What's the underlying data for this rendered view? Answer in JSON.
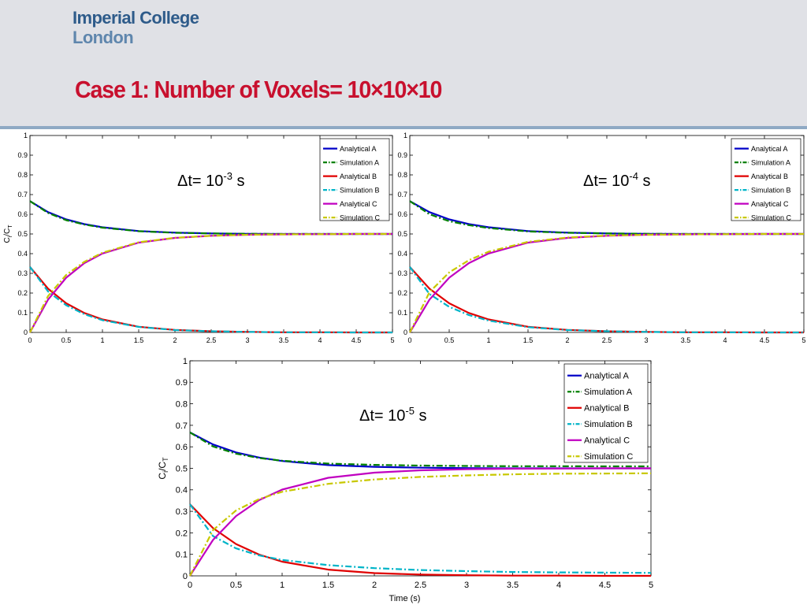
{
  "header": {
    "logo_line1": "Imperial College",
    "logo_line2": "London",
    "title": "Case 1: Number of Voxels= 10×10×10"
  },
  "colors": {
    "title_red": "#c8102e",
    "logo_blue": "#2e5b8a",
    "header_bg": "#e0e1e6"
  },
  "chart_data": [
    {
      "type": "line",
      "annotation": {
        "prefix": "Δt= 10",
        "exponent": "-3",
        "suffix": " s"
      },
      "xlabel": "",
      "ylabel": "Ci/CT",
      "xlim": [
        0,
        5
      ],
      "ylim": [
        0,
        1
      ],
      "x_ticks": [
        "0",
        "0.5",
        "1",
        "1.5",
        "2",
        "2.5",
        "3",
        "3.5",
        "4",
        "4.5",
        "5"
      ],
      "y_ticks": [
        "0",
        "0.1",
        "0.2",
        "0.3",
        "0.4",
        "0.5",
        "0.6",
        "0.7",
        "0.8",
        "0.9",
        "1"
      ],
      "legend_position": "top-right",
      "x": [
        0,
        0.25,
        0.5,
        0.75,
        1,
        1.5,
        2,
        2.5,
        3,
        3.5,
        4,
        4.5,
        5
      ],
      "series": [
        {
          "name": "Analytical A",
          "color": "#0000c8",
          "style": "solid",
          "values": [
            0.667,
            0.611,
            0.574,
            0.55,
            0.534,
            0.515,
            0.507,
            0.503,
            0.501,
            0.5,
            0.5,
            0.5,
            0.5
          ]
        },
        {
          "name": "Simulation A",
          "color": "#008000",
          "style": "dashdot",
          "values": [
            0.667,
            0.607,
            0.57,
            0.548,
            0.532,
            0.514,
            0.506,
            0.503,
            0.501,
            0.5,
            0.5,
            0.5,
            0.5
          ]
        },
        {
          "name": "Analytical B",
          "color": "#e00000",
          "style": "solid",
          "values": [
            0.333,
            0.222,
            0.148,
            0.099,
            0.066,
            0.029,
            0.013,
            0.006,
            0.003,
            0.001,
            0.001,
            0.0,
            0.0
          ]
        },
        {
          "name": "Simulation B",
          "color": "#00b4c8",
          "style": "dashdot",
          "values": [
            0.333,
            0.208,
            0.138,
            0.093,
            0.062,
            0.028,
            0.012,
            0.006,
            0.003,
            0.001,
            0.001,
            0.0,
            0.0
          ]
        },
        {
          "name": "Analytical C",
          "color": "#c000c0",
          "style": "solid",
          "values": [
            0.0,
            0.167,
            0.278,
            0.352,
            0.401,
            0.456,
            0.48,
            0.491,
            0.496,
            0.498,
            0.499,
            0.5,
            0.5
          ]
        },
        {
          "name": "Simulation C",
          "color": "#c8c800",
          "style": "dashdot",
          "values": [
            0.0,
            0.185,
            0.292,
            0.359,
            0.405,
            0.458,
            0.481,
            0.491,
            0.496,
            0.498,
            0.499,
            0.5,
            0.5
          ]
        }
      ]
    },
    {
      "type": "line",
      "annotation": {
        "prefix": "Δt= 10",
        "exponent": "-4",
        "suffix": " s"
      },
      "xlabel": "",
      "ylabel": "",
      "xlim": [
        0,
        5
      ],
      "ylim": [
        0,
        1
      ],
      "x_ticks": [
        "0",
        "0.5",
        "1",
        "1.5",
        "2",
        "2.5",
        "3",
        "3.5",
        "4",
        "4.5",
        "5"
      ],
      "y_ticks": [
        "0",
        "0.1",
        "0.2",
        "0.3",
        "0.4",
        "0.5",
        "0.6",
        "0.7",
        "0.8",
        "0.9",
        "1"
      ],
      "legend_position": "top-right",
      "x": [
        0,
        0.25,
        0.5,
        0.75,
        1,
        1.5,
        2,
        2.5,
        3,
        3.5,
        4,
        4.5,
        5
      ],
      "series": [
        {
          "name": "Analytical A",
          "color": "#0000c8",
          "style": "solid",
          "values": [
            0.667,
            0.611,
            0.574,
            0.55,
            0.534,
            0.515,
            0.507,
            0.503,
            0.501,
            0.5,
            0.5,
            0.5,
            0.5
          ]
        },
        {
          "name": "Simulation A",
          "color": "#008000",
          "style": "dashdot",
          "values": [
            0.667,
            0.6,
            0.565,
            0.545,
            0.53,
            0.513,
            0.506,
            0.503,
            0.501,
            0.5,
            0.5,
            0.5,
            0.5
          ]
        },
        {
          "name": "Analytical B",
          "color": "#e00000",
          "style": "solid",
          "values": [
            0.333,
            0.222,
            0.148,
            0.099,
            0.066,
            0.029,
            0.013,
            0.006,
            0.003,
            0.001,
            0.001,
            0.0,
            0.0
          ]
        },
        {
          "name": "Simulation B",
          "color": "#00b4c8",
          "style": "dashdot",
          "values": [
            0.333,
            0.195,
            0.13,
            0.088,
            0.06,
            0.027,
            0.012,
            0.006,
            0.003,
            0.001,
            0.001,
            0.0,
            0.0
          ]
        },
        {
          "name": "Analytical C",
          "color": "#c000c0",
          "style": "solid",
          "values": [
            0.0,
            0.167,
            0.278,
            0.352,
            0.401,
            0.456,
            0.48,
            0.491,
            0.496,
            0.498,
            0.499,
            0.5,
            0.5
          ]
        },
        {
          "name": "Simulation C",
          "color": "#c8c800",
          "style": "dashdot",
          "values": [
            0.0,
            0.205,
            0.305,
            0.367,
            0.41,
            0.46,
            0.482,
            0.492,
            0.496,
            0.498,
            0.499,
            0.5,
            0.5
          ]
        }
      ]
    },
    {
      "type": "line",
      "annotation": {
        "prefix": "Δt= 10",
        "exponent": "-5",
        "suffix": " s"
      },
      "xlabel": "Time (s)",
      "ylabel": "Ci/CT",
      "xlim": [
        0,
        5
      ],
      "ylim": [
        0,
        1
      ],
      "x_ticks": [
        "0",
        "0.5",
        "1",
        "1.5",
        "2",
        "2.5",
        "3",
        "3.5",
        "4",
        "4.5",
        "5"
      ],
      "y_ticks": [
        "0",
        "0.1",
        "0.2",
        "0.3",
        "0.4",
        "0.5",
        "0.6",
        "0.7",
        "0.8",
        "0.9",
        "1"
      ],
      "legend_position": "top-right",
      "x": [
        0,
        0.25,
        0.5,
        0.75,
        1,
        1.5,
        2,
        2.5,
        3,
        3.5,
        4,
        4.5,
        5
      ],
      "series": [
        {
          "name": "Analytical A",
          "color": "#0000c8",
          "style": "solid",
          "values": [
            0.667,
            0.611,
            0.574,
            0.55,
            0.534,
            0.515,
            0.507,
            0.503,
            0.501,
            0.5,
            0.5,
            0.5,
            0.5
          ]
        },
        {
          "name": "Simulation A",
          "color": "#008000",
          "style": "dashdot",
          "values": [
            0.667,
            0.602,
            0.568,
            0.548,
            0.535,
            0.522,
            0.516,
            0.513,
            0.511,
            0.51,
            0.51,
            0.509,
            0.509
          ]
        },
        {
          "name": "Analytical B",
          "color": "#e00000",
          "style": "solid",
          "values": [
            0.333,
            0.222,
            0.148,
            0.099,
            0.066,
            0.029,
            0.013,
            0.006,
            0.003,
            0.001,
            0.001,
            0.0,
            0.0
          ]
        },
        {
          "name": "Simulation B",
          "color": "#00b4c8",
          "style": "dashdot",
          "values": [
            0.333,
            0.185,
            0.128,
            0.095,
            0.074,
            0.05,
            0.036,
            0.027,
            0.022,
            0.018,
            0.016,
            0.015,
            0.014
          ]
        },
        {
          "name": "Analytical C",
          "color": "#c000c0",
          "style": "solid",
          "values": [
            0.0,
            0.167,
            0.278,
            0.352,
            0.401,
            0.456,
            0.48,
            0.491,
            0.496,
            0.498,
            0.499,
            0.5,
            0.5
          ]
        },
        {
          "name": "Simulation C",
          "color": "#c8c800",
          "style": "dashdot",
          "values": [
            0.0,
            0.213,
            0.304,
            0.357,
            0.391,
            0.428,
            0.448,
            0.46,
            0.467,
            0.472,
            0.475,
            0.476,
            0.477
          ]
        }
      ]
    }
  ]
}
